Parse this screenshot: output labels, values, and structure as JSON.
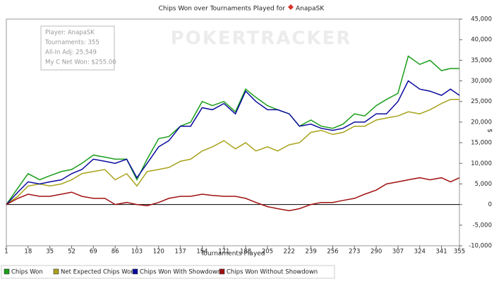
{
  "chart_data": {
    "type": "line",
    "title": "Chips Won over Tournaments Played for",
    "title_player": "AnapaSK",
    "x_label": "Tournaments Played",
    "y_label": "$",
    "watermark": "POKERTRACKER",
    "info_box": [
      "Player: AnapaSK",
      "Tournaments: 355",
      "All-In Adj: 25,549",
      "My C Net Won: $255.00"
    ],
    "x": [
      1,
      10,
      18,
      27,
      35,
      44,
      52,
      60,
      69,
      78,
      86,
      95,
      103,
      111,
      120,
      128,
      137,
      145,
      154,
      162,
      171,
      180,
      188,
      196,
      205,
      213,
      222,
      230,
      239,
      247,
      256,
      264,
      273,
      281,
      290,
      298,
      307,
      315,
      324,
      332,
      341,
      348,
      355
    ],
    "xlim": [
      1,
      355
    ],
    "xticks": [
      1,
      18,
      35,
      52,
      69,
      86,
      103,
      120,
      137,
      154,
      171,
      188,
      205,
      222,
      239,
      256,
      273,
      290,
      307,
      324,
      341,
      355
    ],
    "ylim": [
      -10000,
      45000
    ],
    "yticks": [
      {
        "value": -10000,
        "label": "-10,000"
      },
      {
        "value": -5000,
        "label": "-5,000"
      },
      0,
      {
        "value": 5000,
        "label": "5,000"
      },
      {
        "value": 10000,
        "label": "10,000"
      },
      {
        "value": 15000,
        "label": "15,000"
      },
      {
        "value": 20000,
        "label": "20,000"
      },
      {
        "value": 25000,
        "label": "25,000"
      },
      {
        "value": 30000,
        "label": "30,000"
      },
      {
        "value": 35000,
        "label": "35,000"
      },
      {
        "value": 40000,
        "label": "40,000"
      },
      {
        "value": 45000,
        "label": "45,000"
      }
    ],
    "grid": false,
    "legend": "bottom",
    "series": [
      {
        "name": "Chips Won",
        "color": "#1a9e1a",
        "values": [
          0,
          4000,
          7500,
          6000,
          7000,
          8000,
          8500,
          10000,
          12000,
          11500,
          11000,
          11000,
          6000,
          11000,
          16000,
          16500,
          19000,
          20000,
          25000,
          24000,
          25000,
          22500,
          28000,
          26000,
          24000,
          23000,
          22000,
          19000,
          20500,
          19000,
          18500,
          19500,
          22000,
          21500,
          24000,
          25500,
          27000,
          36000,
          34000,
          35000,
          32500,
          33000,
          33000
        ]
      },
      {
        "name": "Net Expected Chips Won",
        "color": "#a8a21a",
        "values": [
          0,
          2000,
          4500,
          5000,
          4500,
          5000,
          6000,
          7500,
          8000,
          8500,
          6000,
          7500,
          4500,
          8000,
          8500,
          9000,
          10500,
          11000,
          13000,
          14000,
          15500,
          13500,
          15000,
          13000,
          14000,
          13000,
          14500,
          15000,
          17500,
          18000,
          17000,
          17500,
          19000,
          19000,
          20500,
          21000,
          21500,
          22500,
          22000,
          23000,
          24500,
          25500,
          25500
        ]
      },
      {
        "name": "Chips Won With Showdown",
        "color": "#0a0a9e",
        "values": [
          0,
          3000,
          5500,
          5000,
          5500,
          6000,
          7500,
          8500,
          11000,
          10500,
          10000,
          11000,
          6500,
          10000,
          14000,
          15500,
          19000,
          19000,
          23500,
          23000,
          24500,
          22000,
          27500,
          25000,
          23000,
          23000,
          22000,
          19000,
          19500,
          18500,
          18000,
          18500,
          20000,
          20000,
          22000,
          22000,
          25000,
          30000,
          28000,
          27500,
          26500,
          28000,
          26500
        ]
      },
      {
        "name": "Chips Won Without Showdown",
        "color": "#a01010",
        "values": [
          0,
          1500,
          2500,
          2000,
          2000,
          2500,
          3000,
          2000,
          1500,
          1500,
          0,
          500,
          0,
          -300,
          500,
          1500,
          2000,
          2000,
          2500,
          2200,
          2000,
          2000,
          1500,
          500,
          -500,
          -1000,
          -1500,
          -1000,
          0,
          500,
          500,
          1000,
          1500,
          2500,
          3500,
          5000,
          5500,
          6000,
          6500,
          6000,
          6500,
          5500,
          6500
        ]
      }
    ]
  }
}
